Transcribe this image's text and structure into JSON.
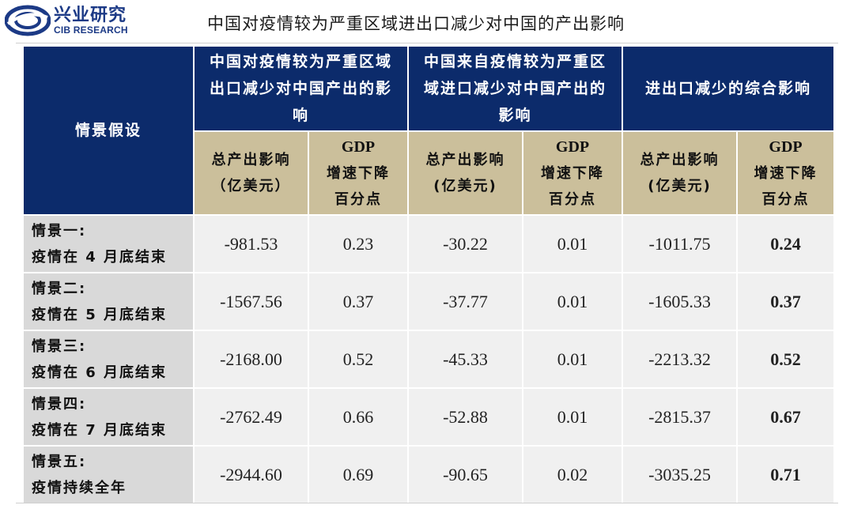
{
  "header": {
    "logo_cn": "兴业研究",
    "logo_en": "CIB RESEARCH",
    "title": "中国对疫情较为严重区域进出口减少对中国的产出影响"
  },
  "table": {
    "scenario_header": "情景假设",
    "groups": [
      "中国对疫情较为严重区域出口减少对中国产出的影响",
      "中国来自疫情较为严重区域进口减少对中国产出的影响",
      "进出口减少的综合影响"
    ],
    "subheaders": {
      "output_line1": "总产出影响",
      "output_line2": "（亿美元）",
      "output_line2_alt": "(亿美元)",
      "gdp_line1": "GDP",
      "gdp_line2": "增速下降",
      "gdp_line3": "百分点"
    },
    "rows": [
      {
        "label1": "情景一:",
        "label2": "疫情在 4 月底结束",
        "values": [
          "-981.53",
          "0.23",
          "-30.22",
          "0.01",
          "-1011.75",
          "0.24"
        ]
      },
      {
        "label1": "情景二:",
        "label2": "疫情在 5 月底结束",
        "values": [
          "-1567.56",
          "0.37",
          "-37.77",
          "0.01",
          "-1605.33",
          "0.37"
        ]
      },
      {
        "label1": "情景三:",
        "label2": "疫情在 6 月底结束",
        "values": [
          "-2168.00",
          "0.52",
          "-45.33",
          "0.01",
          "-2213.32",
          "0.52"
        ]
      },
      {
        "label1": "情景四:",
        "label2": "疫情在 7 月底结束",
        "values": [
          "-2762.49",
          "0.66",
          "-52.88",
          "0.01",
          "-2815.37",
          "0.67"
        ]
      },
      {
        "label1": "情景五:",
        "label2": "疫情持续全年",
        "values": [
          "-2944.60",
          "0.69",
          "-90.65",
          "0.02",
          "-3035.25",
          "0.71"
        ]
      }
    ]
  },
  "colors": {
    "header_bg": "#0c2b6b",
    "subheader_bg": "#cbbf9b",
    "rowheader_bg": "#d9d9d9",
    "cell_bg": "#f0f0f0",
    "brand": "#1c3a86"
  }
}
